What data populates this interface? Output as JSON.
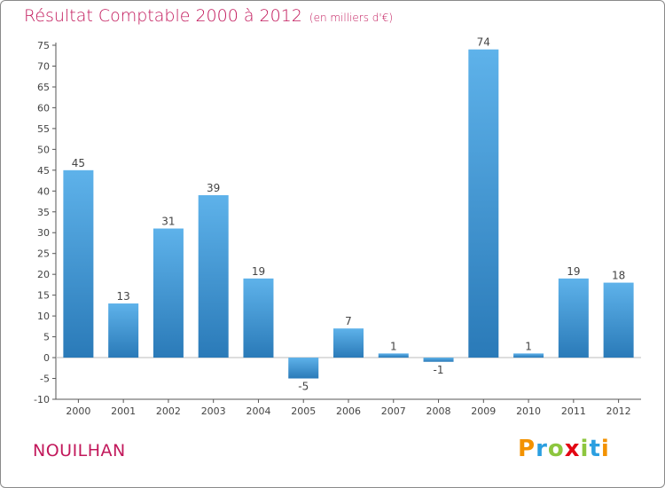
{
  "chart_data": {
    "type": "bar",
    "title": "Résultat Comptable 2000 à 2012",
    "subtitle": "(en milliers d'€)",
    "categories": [
      "2000",
      "2001",
      "2002",
      "2003",
      "2004",
      "2005",
      "2006",
      "2007",
      "2008",
      "2009",
      "2010",
      "2011",
      "2012"
    ],
    "values": [
      45,
      13,
      31,
      39,
      19,
      -5,
      7,
      1,
      -1,
      74,
      1,
      19,
      18
    ],
    "ylim": [
      -10,
      75
    ],
    "yticks": [
      75,
      70,
      65,
      60,
      55,
      50,
      45,
      40,
      35,
      30,
      25,
      20,
      15,
      10,
      5,
      0,
      -5,
      -10
    ],
    "xlabel": "",
    "ylabel": "",
    "grid": false,
    "bar_color": "#3d97d8",
    "bar_color_light": "#5eb2ea",
    "bar_color_dark": "#2a7ab8"
  },
  "place_name": "NOUILHAN",
  "logo": {
    "text": "Proxiti",
    "letters": [
      "P",
      "r",
      "o",
      "x",
      "i",
      "t",
      "i"
    ],
    "colors": [
      "#f39200",
      "#2b9fe0",
      "#8dc63f",
      "#e30613",
      "#8dc63f",
      "#2b9fe0",
      "#f39200"
    ]
  },
  "colors": {
    "title": "#c2185b",
    "axis": "#555555"
  }
}
